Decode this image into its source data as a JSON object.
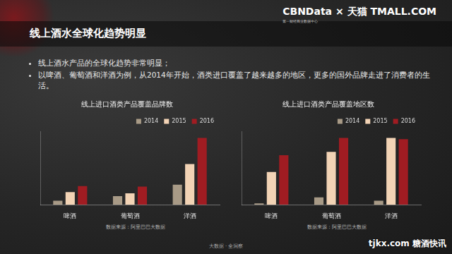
{
  "header": {
    "logo": "CBNData × 天猫 TMALL.COM",
    "logo_subtitle": "第一财经商业数据中心",
    "title": "线上酒水全球化趋势明显"
  },
  "bullets": [
    "线上酒水产品的全球化趋势非常明显；",
    "以啤酒、葡萄酒和洋酒为例，从2014年开始，酒类进口覆盖了越来越多的地区，更多的国外品牌走进了消费者的生活。"
  ],
  "chart_data": [
    {
      "type": "bar",
      "title": "线上进口酒类产品覆盖品牌数",
      "source": "数据来源：阿里巴巴大数据",
      "categories": [
        "啤酒",
        "葡萄酒",
        "洋酒"
      ],
      "series": [
        {
          "name": "2014",
          "color": "#a89a86",
          "values": [
            6,
            13,
            30
          ]
        },
        {
          "name": "2015",
          "color": "#f2d3b5",
          "values": [
            19,
            17,
            61
          ]
        },
        {
          "name": "2016",
          "color": "#a01c22",
          "values": [
            28,
            27,
            100
          ]
        }
      ],
      "ylim": [
        0,
        110
      ],
      "grid": false,
      "legend": "top",
      "tick_labels": "x"
    },
    {
      "type": "bar",
      "title": "线上进口酒类产品覆盖地区数",
      "source": "数据来源：阿里巴巴大数据",
      "categories": [
        "啤酒",
        "葡萄酒",
        "洋酒"
      ],
      "series": [
        {
          "name": "2014",
          "color": "#a89a86",
          "values": [
            2,
            11,
            6
          ]
        },
        {
          "name": "2015",
          "color": "#f2d3b5",
          "values": [
            49,
            79,
            100
          ]
        },
        {
          "name": "2016",
          "color": "#a01c22",
          "values": [
            74,
            100,
            98
          ]
        }
      ],
      "ylim": [
        0,
        110
      ],
      "grid": false,
      "legend": "top",
      "tick_labels": "x"
    }
  ],
  "footer": "大数据 · 全洞察",
  "watermark": "tjkx.com 糖酒快讯"
}
